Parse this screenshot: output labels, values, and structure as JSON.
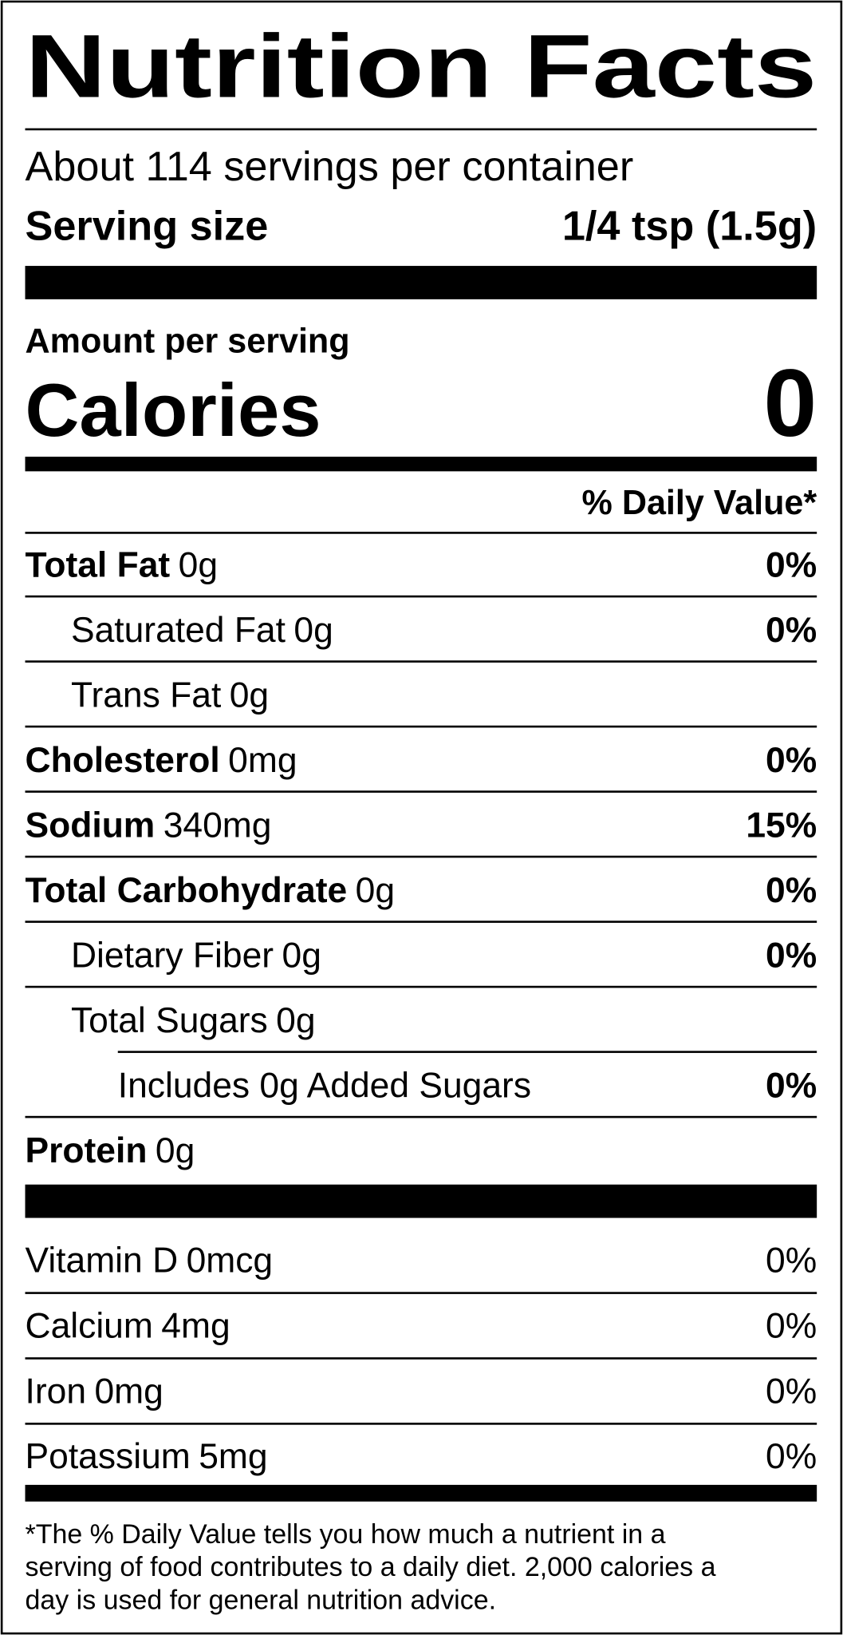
{
  "header": {
    "title": "Nutrition Facts",
    "servings": "About 114 servings per container",
    "serving_size_label": "Serving size",
    "serving_size": "1/4 tsp (1.5g)"
  },
  "calories": {
    "amount_label": "Amount per serving",
    "label": "Calories",
    "value": 0
  },
  "dv_header": "% Daily Value*",
  "nutrients": [
    {
      "name": "Total Fat",
      "amount": "0g",
      "dv": "0%"
    },
    {
      "name": "Saturated Fat",
      "amount": "0g",
      "dv": "0%"
    },
    {
      "name": "Trans Fat",
      "amount": "0g"
    },
    {
      "name": "Cholesterol",
      "amount": "0mg",
      "dv": "0%"
    },
    {
      "name": "Sodium",
      "amount": "340mg",
      "dv": "15%"
    },
    {
      "name": "Total Carbohydrate",
      "amount": "0g",
      "dv": "0%"
    },
    {
      "name": "Dietary Fiber",
      "amount": "0g",
      "dv": "0%"
    },
    {
      "name": "Total Sugars",
      "amount": "0g"
    },
    {
      "name": "Includes 0g Added Sugars",
      "dv": "0%"
    },
    {
      "name": "Protein",
      "amount": "0g"
    }
  ],
  "vitamins": [
    {
      "name": "Vitamin D",
      "amount": "0mcg",
      "dv": "0%"
    },
    {
      "name": "Calcium",
      "amount": "4mg",
      "dv": "0%"
    },
    {
      "name": "Iron",
      "amount": "0mg",
      "dv": "0%"
    },
    {
      "name": "Potassium",
      "amount": "5mg",
      "dv": "0%"
    }
  ],
  "footnote": [
    "*The % Daily Value tells you how much a nutrient in a",
    "serving of food contributes to a daily diet. 2,000 calories a",
    "day is used for general nutrition advice."
  ]
}
